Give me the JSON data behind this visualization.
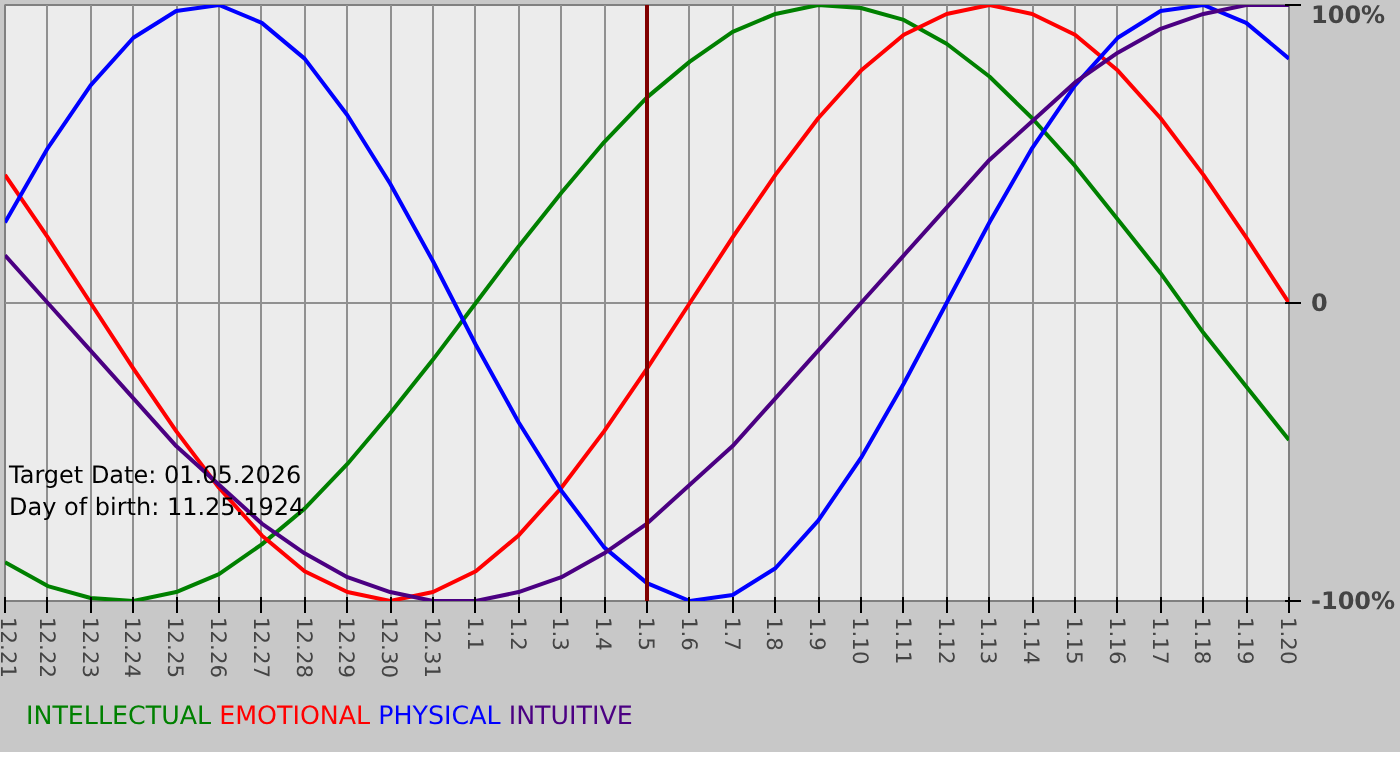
{
  "chart_data": {
    "type": "line",
    "categories": [
      "12.21",
      "12.22",
      "12.23",
      "12.24",
      "12.25",
      "12.26",
      "12.27",
      "12.28",
      "12.29",
      "12.30",
      "12.31",
      "1.1",
      "1.2",
      "1.3",
      "1.4",
      "1.5",
      "1.6",
      "1.7",
      "1.8",
      "1.9",
      "1.10",
      "1.11",
      "1.12",
      "1.13",
      "1.14",
      "1.15",
      "1.16",
      "1.17",
      "1.18",
      "1.19",
      "1.20"
    ],
    "series": [
      {
        "name": "INTELLECTUAL",
        "color": "#008000",
        "values": [
          -87,
          -95,
          -99,
          -100,
          -97,
          -91,
          -81,
          -69,
          -54,
          -37,
          -19,
          0,
          19,
          37,
          54,
          69,
          81,
          91,
          97,
          100,
          99,
          95,
          87,
          76,
          62,
          46,
          28,
          10,
          -10,
          -28,
          -46
        ]
      },
      {
        "name": "EMOTIONAL",
        "color": "#ff0000",
        "values": [
          43,
          22,
          0,
          -22,
          -43,
          -62,
          -78,
          -90,
          -97,
          -100,
          -97,
          -90,
          -78,
          -62,
          -43,
          -22,
          0,
          22,
          43,
          62,
          78,
          90,
          97,
          100,
          97,
          90,
          78,
          62,
          43,
          22,
          0
        ]
      },
      {
        "name": "PHYSICAL",
        "color": "#0000ff",
        "values": [
          27,
          52,
          73,
          89,
          98,
          100,
          94,
          82,
          63,
          40,
          14,
          -14,
          -40,
          -63,
          -82,
          -94,
          -100,
          -98,
          -89,
          -73,
          -52,
          -27,
          0,
          27,
          52,
          73,
          89,
          98,
          100,
          94,
          82
        ]
      },
      {
        "name": "INTUITIVE",
        "color": "#4b0082",
        "values": [
          16,
          0,
          -16,
          -32,
          -48,
          -61,
          -74,
          -84,
          -92,
          -97,
          -100,
          -100,
          -97,
          -92,
          -84,
          -74,
          -61,
          -48,
          -32,
          -16,
          0,
          16,
          32,
          48,
          61,
          74,
          84,
          92,
          97,
          100,
          100
        ]
      }
    ],
    "ylim": [
      -100,
      100
    ],
    "yticks": [
      {
        "value": -100,
        "label": "-100%"
      },
      0,
      {
        "value": 100,
        "label": "100%"
      }
    ],
    "ref_lines": [
      {
        "axis": "x",
        "value": "1.5",
        "color": "#800000"
      }
    ],
    "annotations": [
      "Target Date: 01.05.2026",
      "Day of birth: 11.25.1924"
    ],
    "grid": true,
    "legend": "bottom left",
    "marker": "none",
    "line_style": "solid"
  }
}
